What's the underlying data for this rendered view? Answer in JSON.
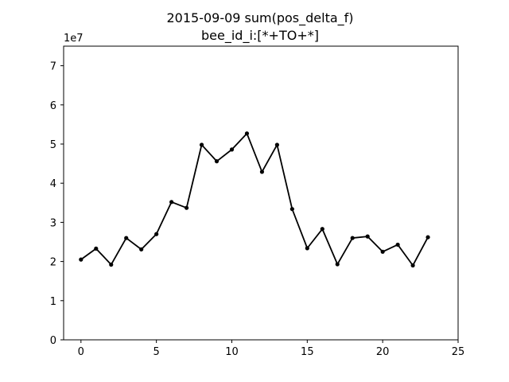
{
  "chart_data": {
    "type": "line",
    "title_line1": "2015-09-09 sum(pos_delta_f)",
    "title_line2": "bee_id_i:[*+TO+*]",
    "xlabel": "",
    "ylabel": "",
    "y_offset_label": "1e7",
    "xlim": [
      -1.15,
      25
    ],
    "ylim": [
      0,
      7.5
    ],
    "x_ticks": [
      0,
      5,
      10,
      15,
      20,
      25
    ],
    "y_ticks": [
      0,
      1,
      2,
      3,
      4,
      5,
      6,
      7
    ],
    "grid": false,
    "line_color": "#000000",
    "series": [
      {
        "x": [
          0,
          1,
          2,
          3,
          4,
          5,
          6,
          7,
          8,
          9,
          10,
          11,
          12,
          13,
          14,
          15,
          16,
          17,
          18,
          19,
          20,
          21,
          22,
          23
        ],
        "values": [
          2.05,
          2.33,
          1.92,
          2.6,
          2.31,
          2.7,
          3.52,
          3.37,
          4.98,
          4.56,
          4.86,
          5.27,
          4.29,
          4.98,
          3.34,
          2.34,
          2.83,
          1.93,
          2.6,
          2.64,
          2.25,
          2.43,
          1.9,
          2.62
        ]
      }
    ]
  }
}
